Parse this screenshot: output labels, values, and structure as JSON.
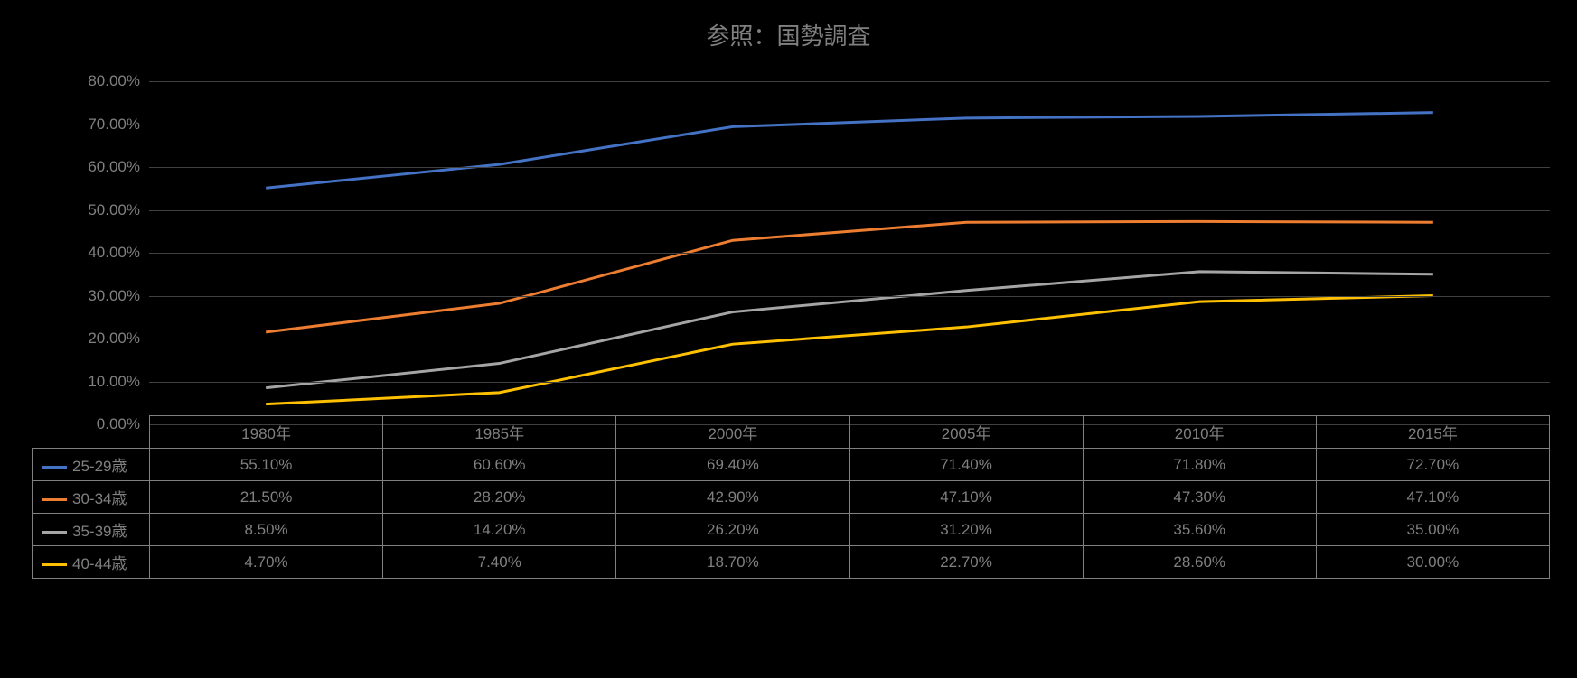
{
  "title": "参照：国勢調査",
  "background_color": "#000000",
  "text_color": "#808080",
  "grid_color": "#404040",
  "chart": {
    "type": "line",
    "ylim": [
      0,
      80
    ],
    "ytick_step": 10,
    "ytick_format_suffix": ".00%",
    "line_width": 3,
    "categories": [
      "1980年",
      "1985年",
      "2000年",
      "2005年",
      "2010年",
      "2015年"
    ],
    "series": [
      {
        "name": "25-29歳",
        "color": "#4472c4",
        "values": [
          55.1,
          60.6,
          69.4,
          71.4,
          71.8,
          72.7
        ]
      },
      {
        "name": "30-34歳",
        "color": "#ed7d31",
        "values": [
          21.5,
          28.2,
          42.9,
          47.1,
          47.3,
          47.1
        ]
      },
      {
        "name": "35-39歳",
        "color": "#a5a5a5",
        "values": [
          8.5,
          14.2,
          26.2,
          31.2,
          35.6,
          35.0
        ]
      },
      {
        "name": "40-44歳",
        "color": "#ffc000",
        "values": [
          4.7,
          7.4,
          18.7,
          22.7,
          28.6,
          30.0
        ]
      }
    ]
  },
  "table": {
    "cell_format_suffix": "%",
    "decimals": 2
  }
}
